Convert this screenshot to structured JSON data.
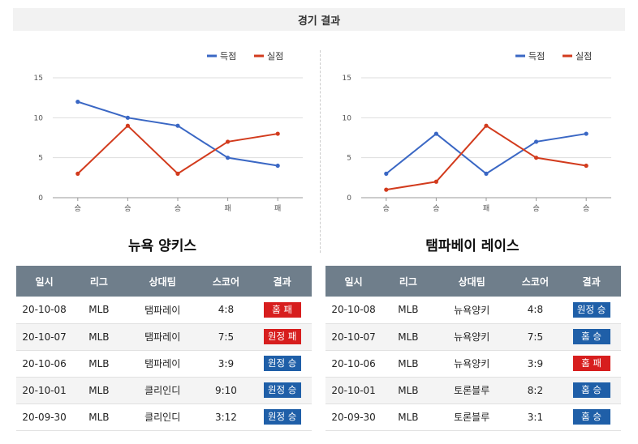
{
  "header": {
    "title": "경기 결과"
  },
  "colors": {
    "scored": "#3a67c4",
    "conceded": "#d23b1d",
    "win": "#1f5fa8",
    "loss": "#d71e1e"
  },
  "chart_data": [
    {
      "type": "line",
      "categories": [
        "승",
        "승",
        "승",
        "패",
        "패"
      ],
      "series": [
        {
          "name": "득점",
          "values": [
            12,
            10,
            9,
            5,
            4
          ]
        },
        {
          "name": "실점",
          "values": [
            3,
            9,
            3,
            7,
            8
          ]
        }
      ],
      "ylim": [
        0,
        15
      ],
      "yticks": [
        0,
        5,
        10,
        15
      ],
      "grid": true,
      "legend": "top-right"
    },
    {
      "type": "line",
      "categories": [
        "승",
        "승",
        "패",
        "승",
        "승"
      ],
      "series": [
        {
          "name": "득점",
          "values": [
            3,
            8,
            3,
            7,
            8
          ]
        },
        {
          "name": "실점",
          "values": [
            1,
            2,
            9,
            5,
            4
          ]
        }
      ],
      "ylim": [
        0,
        15
      ],
      "yticks": [
        0,
        5,
        10,
        15
      ],
      "grid": true,
      "legend": "top-right"
    }
  ],
  "teams": {
    "left": {
      "name": "뉴욕 양키스"
    },
    "right": {
      "name": "탬파베이 레이스"
    }
  },
  "table_headers": [
    "일시",
    "리그",
    "상대팀",
    "스코어",
    "결과"
  ],
  "tables": {
    "left": [
      {
        "date": "20-10-08",
        "league": "MLB",
        "opponent": "탬파레이",
        "score": "4:8",
        "result": "홈 패",
        "outcome": "loss"
      },
      {
        "date": "20-10-07",
        "league": "MLB",
        "opponent": "탬파레이",
        "score": "7:5",
        "result": "원정 패",
        "outcome": "loss"
      },
      {
        "date": "20-10-06",
        "league": "MLB",
        "opponent": "탬파레이",
        "score": "3:9",
        "result": "원정 승",
        "outcome": "win"
      },
      {
        "date": "20-10-01",
        "league": "MLB",
        "opponent": "클리인디",
        "score": "9:10",
        "result": "원정 승",
        "outcome": "win"
      },
      {
        "date": "20-09-30",
        "league": "MLB",
        "opponent": "클리인디",
        "score": "3:12",
        "result": "원정 승",
        "outcome": "win"
      }
    ],
    "right": [
      {
        "date": "20-10-08",
        "league": "MLB",
        "opponent": "뉴욕양키",
        "score": "4:8",
        "result": "원정 승",
        "outcome": "win"
      },
      {
        "date": "20-10-07",
        "league": "MLB",
        "opponent": "뉴욕양키",
        "score": "7:5",
        "result": "홈 승",
        "outcome": "win"
      },
      {
        "date": "20-10-06",
        "league": "MLB",
        "opponent": "뉴욕양키",
        "score": "3:9",
        "result": "홈 패",
        "outcome": "loss"
      },
      {
        "date": "20-10-01",
        "league": "MLB",
        "opponent": "토론블루",
        "score": "8:2",
        "result": "홈 승",
        "outcome": "win"
      },
      {
        "date": "20-09-30",
        "league": "MLB",
        "opponent": "토론블루",
        "score": "3:1",
        "result": "홈 승",
        "outcome": "win"
      }
    ]
  }
}
